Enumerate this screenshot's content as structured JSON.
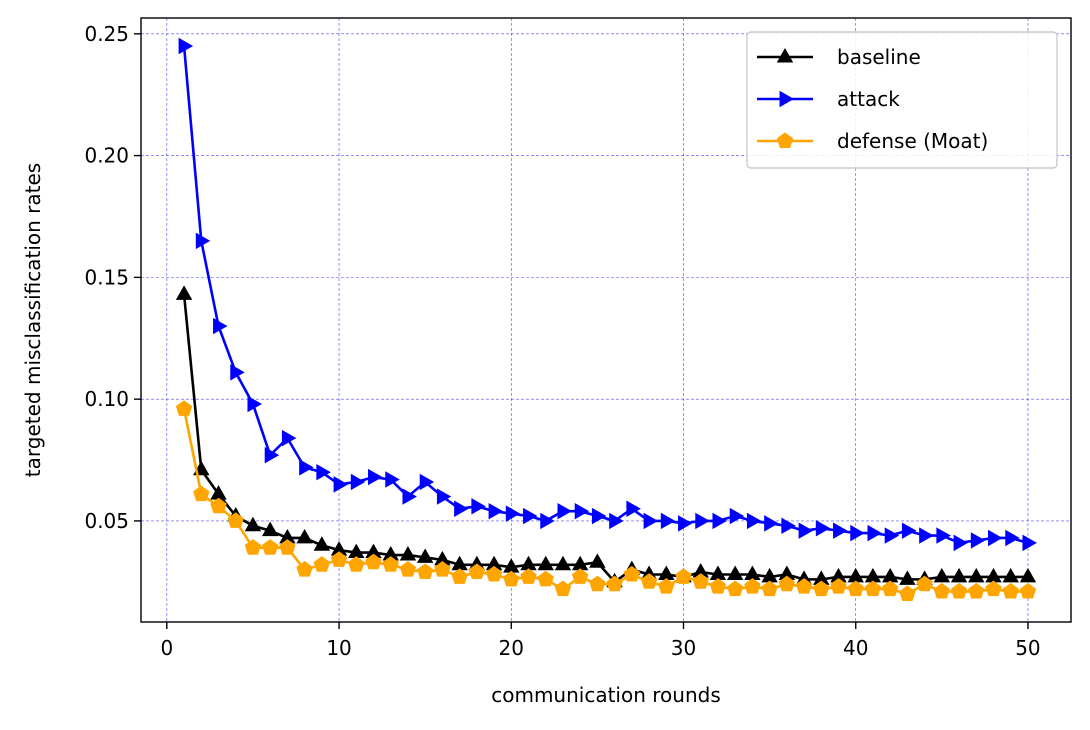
{
  "chart_data": {
    "type": "line",
    "title": "",
    "xlabel": "communication rounds",
    "ylabel": "targeted misclassification rates",
    "xlim": [
      -1.5,
      52.5
    ],
    "ylim": [
      0.0085,
      0.2565
    ],
    "x_ticks": [
      "0",
      "10",
      "20",
      "30",
      "40",
      "50"
    ],
    "y_ticks": [
      "0.05",
      "0.10",
      "0.15",
      "0.20",
      "0.25"
    ],
    "grid": true,
    "grid_color": "#0000ff",
    "legend_position": "upper right",
    "x": [
      1,
      2,
      3,
      4,
      5,
      6,
      7,
      8,
      9,
      10,
      11,
      12,
      13,
      14,
      15,
      16,
      17,
      18,
      19,
      20,
      21,
      22,
      23,
      24,
      25,
      26,
      27,
      28,
      29,
      30,
      31,
      32,
      33,
      34,
      35,
      36,
      37,
      38,
      39,
      40,
      41,
      42,
      43,
      44,
      45,
      46,
      47,
      48,
      49,
      50
    ],
    "series": [
      {
        "name": "baseline",
        "color": "#000000",
        "marker": "triangle-up",
        "values": [
          0.143,
          0.071,
          0.061,
          0.052,
          0.048,
          0.046,
          0.043,
          0.043,
          0.04,
          0.038,
          0.037,
          0.037,
          0.036,
          0.036,
          0.035,
          0.034,
          0.032,
          0.032,
          0.032,
          0.031,
          0.032,
          0.032,
          0.032,
          0.032,
          0.033,
          0.025,
          0.03,
          0.028,
          0.028,
          0.027,
          0.029,
          0.028,
          0.028,
          0.028,
          0.027,
          0.028,
          0.026,
          0.026,
          0.027,
          0.027,
          0.027,
          0.027,
          0.026,
          0.026,
          0.027,
          0.027,
          0.027,
          0.027,
          0.027,
          0.027
        ]
      },
      {
        "name": "attack",
        "color": "#0000ff",
        "marker": "triangle-right",
        "values": [
          0.245,
          0.165,
          0.13,
          0.111,
          0.098,
          0.077,
          0.084,
          0.072,
          0.07,
          0.065,
          0.066,
          0.068,
          0.067,
          0.06,
          0.066,
          0.06,
          0.055,
          0.056,
          0.054,
          0.053,
          0.052,
          0.05,
          0.054,
          0.054,
          0.052,
          0.05,
          0.055,
          0.05,
          0.05,
          0.049,
          0.05,
          0.05,
          0.052,
          0.05,
          0.049,
          0.048,
          0.046,
          0.047,
          0.046,
          0.045,
          0.045,
          0.044,
          0.046,
          0.044,
          0.044,
          0.041,
          0.042,
          0.043,
          0.043,
          0.041
        ]
      },
      {
        "name": "defense (Moat)",
        "color": "#ffa500",
        "marker": "pentagon",
        "values": [
          0.096,
          0.061,
          0.056,
          0.05,
          0.039,
          0.039,
          0.039,
          0.03,
          0.032,
          0.034,
          0.032,
          0.033,
          0.032,
          0.03,
          0.029,
          0.03,
          0.027,
          0.029,
          0.028,
          0.026,
          0.027,
          0.026,
          0.022,
          0.027,
          0.024,
          0.024,
          0.028,
          0.025,
          0.023,
          0.027,
          0.025,
          0.023,
          0.022,
          0.023,
          0.022,
          0.024,
          0.023,
          0.022,
          0.023,
          0.022,
          0.022,
          0.022,
          0.02,
          0.024,
          0.021,
          0.021,
          0.021,
          0.022,
          0.021,
          0.021
        ]
      }
    ]
  }
}
